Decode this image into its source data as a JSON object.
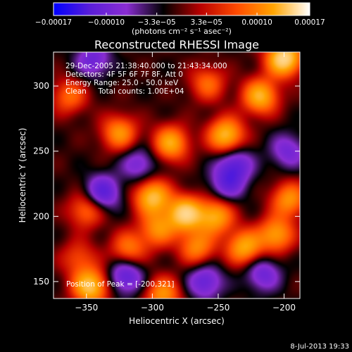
{
  "chart_data": {
    "type": "heatmap",
    "title": "Reconstructed RHESSI Image",
    "xlabel": "Heliocentric X (arcsec)",
    "ylabel": "Heliocentric Y (arcsec)",
    "xlim": [
      -375,
      -188
    ],
    "ylim": [
      137,
      326
    ],
    "x_ticks": [
      -350,
      -300,
      -250,
      -200
    ],
    "x_tick_labels": [
      "−350",
      "−300",
      "−250",
      "−200"
    ],
    "y_ticks": [
      150,
      200,
      250,
      300
    ],
    "y_tick_labels": [
      "150",
      "200",
      "250",
      "300"
    ],
    "colorbar": {
      "range": [
        -0.00017,
        0.00017
      ],
      "tick_values": [
        -0.00017,
        -0.0001,
        -3.3e-05,
        3.3e-05,
        0.0001,
        0.00017
      ],
      "tick_labels": [
        "−0.00017",
        "−0.00010",
        "−3.3e−05",
        "3.3e−05",
        "0.00010",
        "0.00017"
      ],
      "unit_label": "(photons cm⁻² s⁻¹ asec⁻²)",
      "colormap": [
        "#0000ff",
        "#5a1ed8",
        "#8a2dd2",
        "#000000",
        "#b80000",
        "#ff4a00",
        "#ffa400",
        "#ffffff"
      ]
    },
    "annotations": [
      "29-Dec-2005 21:38:40.000 to 21:43:34.000",
      "Detectors: 4F 5F 6F 7F 8F, Att 0",
      "Energy Range: 25.0 - 50.0 keV",
      "Clean     Total counts: 1.00E+04"
    ],
    "peak_label": "Position of Peak = [-200,321]",
    "peak": {
      "x": -200,
      "y": 321
    },
    "grid": false,
    "sources": [
      {
        "x": -200,
        "y": 321,
        "v": 1.0
      },
      {
        "x": -218,
        "y": 292,
        "v": 0.75
      },
      {
        "x": -347,
        "y": 146,
        "v": 0.85
      },
      {
        "x": -292,
        "y": 140,
        "v": 0.6
      },
      {
        "x": -286,
        "y": 256,
        "v": 0.7
      },
      {
        "x": -244,
        "y": 262,
        "v": 0.8
      },
      {
        "x": -300,
        "y": 215,
        "v": 0.8
      },
      {
        "x": -275,
        "y": 202,
        "v": 0.9
      },
      {
        "x": -252,
        "y": 200,
        "v": 0.7
      },
      {
        "x": -325,
        "y": 264,
        "v": 0.6
      },
      {
        "x": -266,
        "y": 176,
        "v": 0.55
      },
      {
        "x": -230,
        "y": 176,
        "v": 0.7
      },
      {
        "x": -206,
        "y": 186,
        "v": 0.65
      },
      {
        "x": -350,
        "y": 205,
        "v": 0.5
      },
      {
        "x": -318,
        "y": 175,
        "v": 0.5
      },
      {
        "x": -196,
        "y": 213,
        "v": 0.6
      },
      {
        "x": -363,
        "y": 292,
        "v": 0.45
      },
      {
        "x": -258,
        "y": 302,
        "v": 0.45
      },
      {
        "x": -296,
        "y": 190,
        "v": 0.55
      },
      {
        "x": -356,
        "y": 168,
        "v": 0.35
      },
      {
        "x": -345,
        "y": 320,
        "v": -0.45
      },
      {
        "x": -237,
        "y": 240,
        "v": -0.5
      },
      {
        "x": -338,
        "y": 218,
        "v": -0.6
      },
      {
        "x": -320,
        "y": 154,
        "v": -0.55
      },
      {
        "x": -260,
        "y": 150,
        "v": -0.5
      },
      {
        "x": -216,
        "y": 156,
        "v": -0.45
      },
      {
        "x": -310,
        "y": 240,
        "v": -0.4
      },
      {
        "x": -243,
        "y": 225,
        "v": -0.45
      },
      {
        "x": -197,
        "y": 250,
        "v": -0.4
      }
    ]
  },
  "footer": {
    "timestamp": "8-Jul-2013 19:33"
  }
}
